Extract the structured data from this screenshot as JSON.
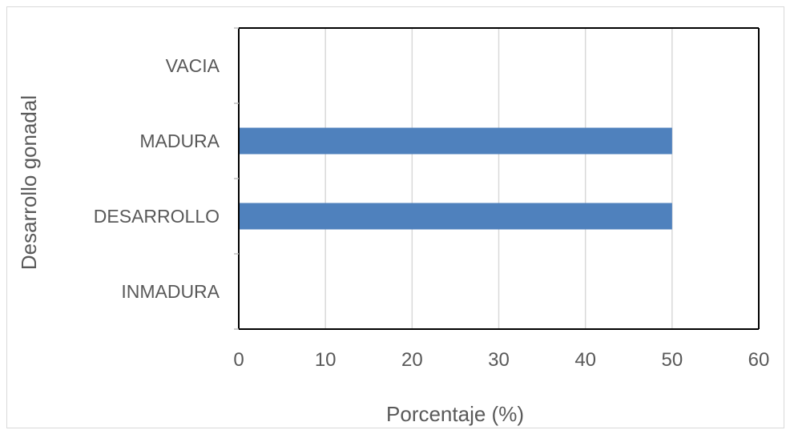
{
  "chart_data": {
    "type": "bar",
    "orientation": "horizontal",
    "categories": [
      "INMADURA",
      "DESARROLLO",
      "MADURA",
      "VACIA"
    ],
    "values": [
      0,
      50,
      50,
      0
    ],
    "xlabel": "Porcentaje (%)",
    "ylabel": "Desarrollo gonadal",
    "xlim": [
      0,
      60
    ],
    "xticks": [
      0,
      10,
      20,
      30,
      40,
      50,
      60
    ],
    "grid": true,
    "bar_color": "#4f81bd",
    "axis_color": "#000000",
    "grid_color": "#d9d9d9",
    "text_color": "#595959"
  }
}
